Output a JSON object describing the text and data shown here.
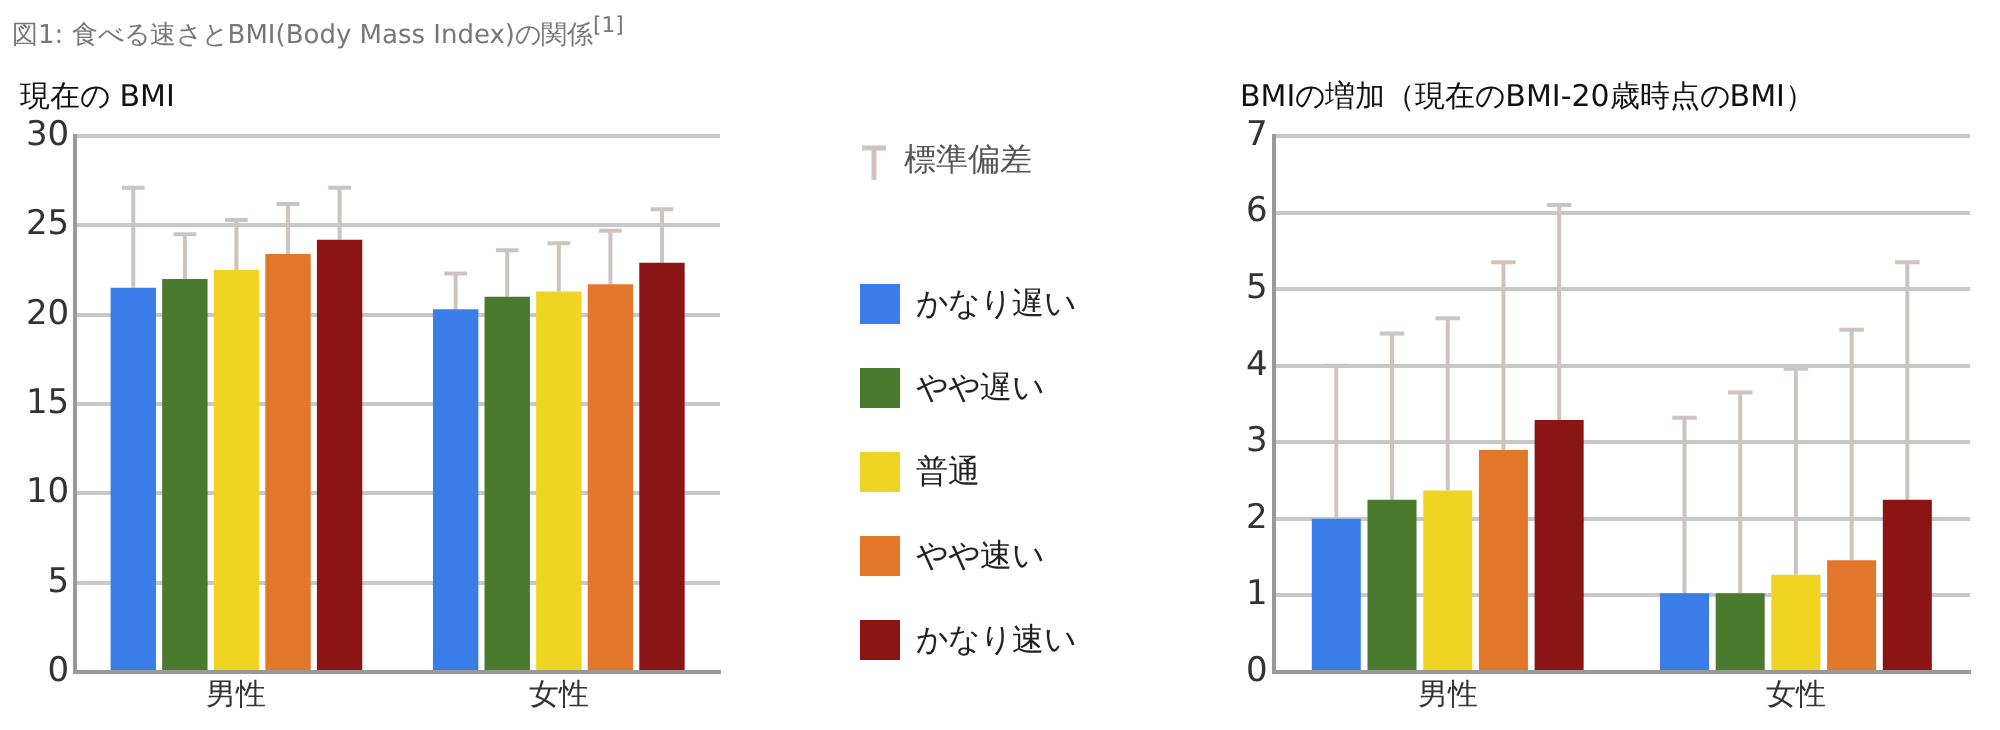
{
  "chart_data": [
    {
      "type": "bar",
      "title": "現在の BMI",
      "categories": [
        "男性",
        "女性"
      ],
      "ylim": [
        0,
        30
      ],
      "yticks": [
        0,
        5,
        10,
        15,
        20,
        25,
        30
      ],
      "grid": "y",
      "legend": "right",
      "annotations": [
        "図1: 食べる速さとBMI(Body Mass Index)の関係$^{[1]}$",
        "標準偏差"
      ],
      "series": [
        {
          "name": "かなり遅い",
          "color": "#3b7de8",
          "values": [
            21.5,
            20.3
          ],
          "errors": [
            [
              21.5,
              27.1
            ],
            [
              20.3,
              22.3
            ]
          ]
        },
        {
          "name": "やや遅い",
          "color": "#4a7a2e",
          "values": [
            22.0,
            21.0
          ],
          "errors": [
            [
              22.0,
              24.5
            ],
            [
              21.0,
              23.6
            ]
          ]
        },
        {
          "name": "普通",
          "color": "#f0d422",
          "values": [
            22.5,
            21.3
          ],
          "errors": [
            [
              22.5,
              25.3
            ],
            [
              21.3,
              24.0
            ]
          ]
        },
        {
          "name": "やや速い",
          "color": "#e2772c",
          "values": [
            23.4,
            21.7
          ],
          "errors": [
            [
              23.4,
              26.2
            ],
            [
              21.7,
              24.7
            ]
          ]
        },
        {
          "name": "かなり速い",
          "color": "#8b1515",
          "values": [
            24.2,
            22.9
          ],
          "errors": [
            [
              24.2,
              27.1
            ],
            [
              22.9,
              25.9
            ]
          ]
        }
      ]
    },
    {
      "type": "bar",
      "title": "BMIの増加（現在のBMI-20歳時点のBMI）",
      "categories": [
        "男性",
        "女性"
      ],
      "ylim": [
        0,
        7
      ],
      "yticks": [
        0,
        1,
        2,
        3,
        4,
        5,
        6,
        7
      ],
      "grid": "y",
      "series": [
        {
          "color": "#3b7de8",
          "values": [
            2.0,
            1.03
          ],
          "errors": [
            [
              2.0,
              4.0
            ],
            [
              1.03,
              3.32
            ]
          ]
        },
        {
          "color": "#4a7a2e",
          "values": [
            2.25,
            1.03
          ],
          "errors": [
            [
              2.25,
              4.42
            ],
            [
              1.03,
              3.65
            ]
          ]
        },
        {
          "color": "#f0d422",
          "values": [
            2.37,
            1.27
          ],
          "errors": [
            [
              2.37,
              4.62
            ],
            [
              1.27,
              3.96
            ]
          ]
        },
        {
          "color": "#e2772c",
          "values": [
            2.9,
            1.46
          ],
          "errors": [
            [
              2.9,
              5.35
            ],
            [
              1.46,
              4.47
            ]
          ]
        },
        {
          "color": "#8b1515",
          "values": [
            3.29,
            2.25
          ],
          "errors": [
            [
              3.29,
              6.1
            ],
            [
              2.25,
              5.35
            ]
          ]
        }
      ]
    }
  ]
}
